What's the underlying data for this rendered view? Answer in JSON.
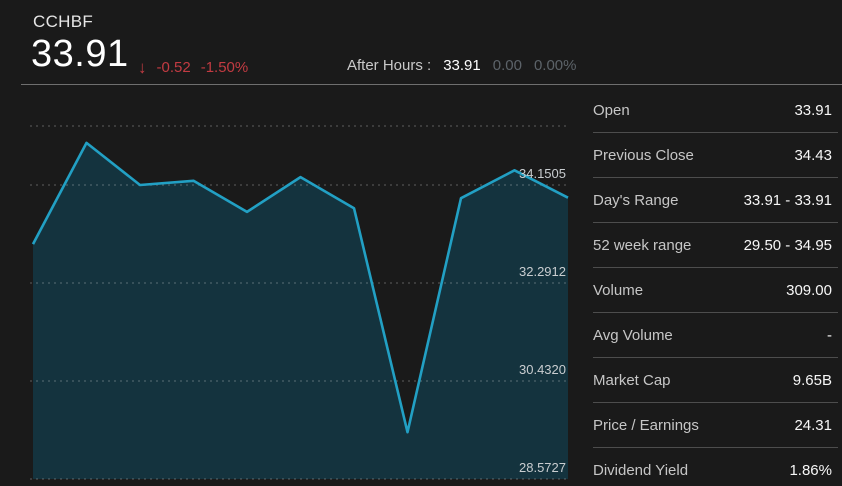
{
  "header": {
    "symbol": "CCHBF",
    "price": "33.91",
    "change_arrow": "↓",
    "change": "-0.52",
    "change_percent": "-1.50%",
    "after_hours_label": "After Hours :",
    "after_hours_price": "33.91",
    "after_hours_change": "0.00",
    "after_hours_change_percent": "0.00%"
  },
  "stats": {
    "rows": [
      {
        "label": "Open",
        "value": "33.91"
      },
      {
        "label": "Previous Close",
        "value": "34.43"
      },
      {
        "label": "Day's Range",
        "value": "33.91 - 33.91"
      },
      {
        "label": "52 week range",
        "value": "29.50 - 34.95"
      },
      {
        "label": "Volume",
        "value": "309.00"
      },
      {
        "label": "Avg Volume",
        "value": "-"
      },
      {
        "label": "Market Cap",
        "value": "9.65B"
      },
      {
        "label": "Price / Earnings",
        "value": "24.31"
      },
      {
        "label": "Dividend Yield",
        "value": "1.86%"
      }
    ]
  },
  "chart_data": {
    "type": "area",
    "title": "CCHBF price history",
    "xlabel": "",
    "ylabel": "",
    "x": [
      0,
      1,
      2,
      3,
      4,
      5,
      6,
      7,
      8,
      9,
      10
    ],
    "values": [
      33.03,
      34.95,
      34.15,
      34.23,
      33.64,
      34.3,
      33.71,
      29.46,
      33.9,
      34.43,
      33.91
    ],
    "axis_ticks": [
      {
        "label": "34.1505",
        "value": 34.1505
      },
      {
        "label": "32.2912",
        "value": 32.2912
      },
      {
        "label": "30.4320",
        "value": 30.432
      },
      {
        "label": "28.5727",
        "value": 28.5727
      }
    ],
    "top_boundary_value": 35.27,
    "ylim": [
      28.5727,
      35.27
    ],
    "grid": "dotted horizontal",
    "legend": "none"
  },
  "colors": {
    "background": "#1a1a1a",
    "line": "#22a0c4",
    "fill": "#14333e",
    "grid": "rgba(255,255,255,0.20)",
    "axis_label": "#c9cdd0",
    "negative_red": "#c23b42"
  }
}
